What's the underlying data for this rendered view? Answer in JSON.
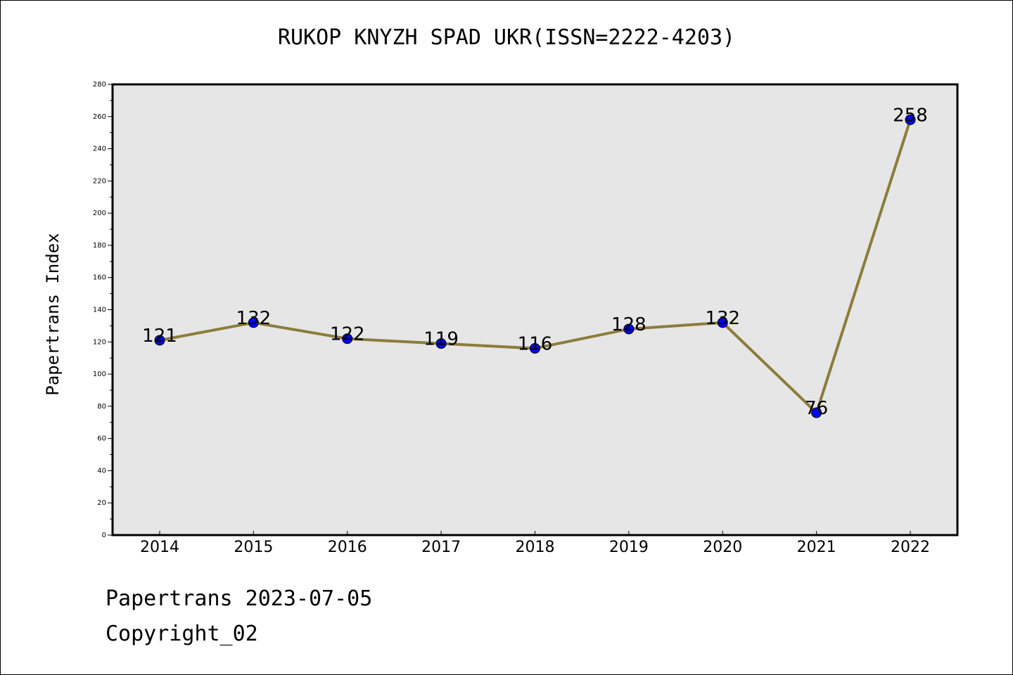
{
  "chart_data": {
    "type": "line",
    "title": "RUKOP KNYZH SPAD UKR(ISSN=2222-4203)",
    "xlabel": "",
    "ylabel": "Papertrans Index",
    "categories": [
      "2014",
      "2015",
      "2016",
      "2017",
      "2018",
      "2019",
      "2020",
      "2021",
      "2022"
    ],
    "series": [
      {
        "values": [
          121,
          132,
          122,
          119,
          116,
          128,
          132,
          76,
          258
        ],
        "data_labels": [
          "121",
          "132",
          "122",
          "119",
          "116",
          "128",
          "132",
          "76",
          "258"
        ],
        "line_color": "#8b7d3a",
        "marker_color": "#0000ff"
      }
    ],
    "ylim": [
      0,
      280
    ],
    "yticks": [
      0,
      20,
      40,
      60,
      80,
      100,
      120,
      140,
      160,
      180,
      200,
      220,
      240,
      260,
      280
    ],
    "plot_background": "#e6e6e6",
    "grid": false
  },
  "footer": {
    "date_line": "Papertrans 2023-07-05",
    "copyright_line": "Copyright_02"
  }
}
